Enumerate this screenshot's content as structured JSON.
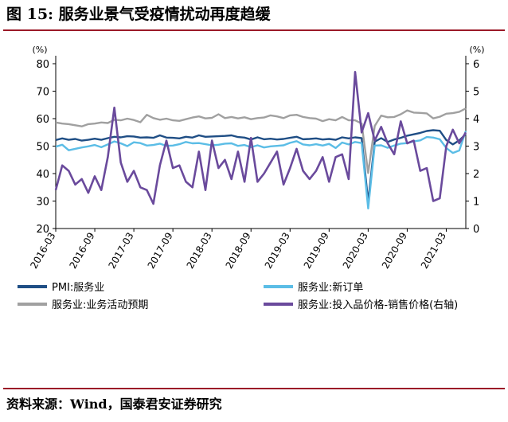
{
  "title": "图 15: 服务业景气受疫情扰动再度趋缓",
  "source": "资料来源：Wind，国泰君安证券研究",
  "colors": {
    "accent": "#9b1a28"
  },
  "chart_data": {
    "type": "line",
    "left_axis": {
      "unit": "(%)",
      "ylim": [
        20,
        80
      ],
      "ticks": [
        "20",
        "30",
        "40",
        "50",
        "60",
        "70",
        "80"
      ]
    },
    "right_axis": {
      "unit": "(%)",
      "ylim": [
        0,
        6
      ],
      "ticks": [
        "0",
        "1",
        "2",
        "3",
        "4",
        "5",
        "6"
      ]
    },
    "x_tick_labels": [
      "2016-03",
      "2016-09",
      "2017-03",
      "2017-09",
      "2018-03",
      "2018-09",
      "2019-03",
      "2019-09",
      "2020-03",
      "2020-09",
      "2021-03"
    ],
    "x_tick_positions": [
      0,
      6,
      12,
      18,
      24,
      30,
      36,
      42,
      48,
      54,
      60
    ],
    "series": [
      {
        "name": "PMI:服务业",
        "axis": "left",
        "color": "#1f4e85",
        "values": [
          52.2,
          52.8,
          52.3,
          52.6,
          52.0,
          52.3,
          52.7,
          52.3,
          52.9,
          53.4,
          53.2,
          53.6,
          53.5,
          53.1,
          53.2,
          53.0,
          53.9,
          53.1,
          53.0,
          52.8,
          53.4,
          53.1,
          53.9,
          53.4,
          53.5,
          53.6,
          53.7,
          53.9,
          53.3,
          53.1,
          52.4,
          53.2,
          52.5,
          52.7,
          52.4,
          52.6,
          53.0,
          53.4,
          52.5,
          52.6,
          52.8,
          52.4,
          52.6,
          52.3,
          53.2,
          52.8,
          53.2,
          52.9,
          29.6,
          51.6,
          52.9,
          51.5,
          52.4,
          53.0,
          53.8,
          54.3,
          54.8,
          55.5,
          55.8,
          55.6,
          52.2,
          50.6,
          52.1,
          54.4
        ]
      },
      {
        "name": "服务业:新订单",
        "axis": "left",
        "color": "#5bbde6",
        "values": [
          49.8,
          50.5,
          48.5,
          49.0,
          49.5,
          49.9,
          50.4,
          49.6,
          50.6,
          51.7,
          51.0,
          50.0,
          51.4,
          51.1,
          50.2,
          50.4,
          50.9,
          50.1,
          50.2,
          50.7,
          51.5,
          51.0,
          51.1,
          50.7,
          50.3,
          50.5,
          50.9,
          51.0,
          50.1,
          50.4,
          49.6,
          50.3,
          49.5,
          49.9,
          50.1,
          50.3,
          51.2,
          51.8,
          50.6,
          50.3,
          50.7,
          50.2,
          50.8,
          49.3,
          51.3,
          50.6,
          51.5,
          51.1,
          27.3,
          50.2,
          50.3,
          49.4,
          50.2,
          50.9,
          51.1,
          51.7,
          52.1,
          53.3,
          53.1,
          52.5,
          49.3,
          47.5,
          48.4,
          55.5
        ]
      },
      {
        "name": "服务业:业务活动预期",
        "axis": "left",
        "color": "#a0a0a0",
        "values": [
          58.6,
          58.2,
          58.0,
          57.6,
          57.2,
          58.0,
          58.2,
          58.6,
          58.4,
          59.6,
          59.4,
          60.0,
          59.5,
          58.7,
          61.4,
          60.2,
          59.6,
          60.0,
          59.4,
          59.2,
          59.8,
          60.4,
          60.8,
          60.1,
          60.3,
          61.6,
          60.2,
          60.6,
          60.1,
          60.5,
          59.8,
          60.2,
          60.4,
          61.2,
          60.8,
          60.2,
          61.2,
          61.4,
          60.6,
          60.2,
          60.0,
          59.1,
          59.8,
          59.4,
          60.6,
          59.4,
          59.4,
          58.2,
          40.2,
          57.3,
          61.1,
          60.5,
          60.6,
          61.6,
          63.0,
          62.2,
          62.1,
          61.9,
          60.1,
          60.7,
          61.8,
          62.0,
          62.5,
          63.7
        ]
      },
      {
        "name": "服务业:投入品价格-销售价格(右轴)",
        "axis": "right",
        "color": "#6a4a9c",
        "values": [
          1.4,
          2.3,
          2.1,
          1.6,
          1.8,
          1.3,
          1.9,
          1.4,
          2.6,
          4.4,
          2.4,
          1.7,
          2.1,
          1.5,
          1.4,
          0.9,
          2.3,
          3.2,
          2.2,
          2.3,
          1.7,
          1.5,
          2.8,
          1.4,
          3.2,
          2.2,
          2.5,
          1.8,
          2.8,
          1.7,
          3.3,
          1.7,
          2.0,
          2.4,
          2.8,
          1.6,
          2.2,
          2.9,
          2.1,
          1.8,
          2.1,
          2.6,
          1.7,
          2.6,
          2.7,
          1.8,
          5.7,
          3.5,
          4.2,
          3.2,
          3.7,
          3.1,
          2.7,
          3.9,
          3.1,
          3.2,
          2.1,
          2.2,
          1.0,
          1.1,
          3.0,
          3.6,
          3.1,
          3.5
        ]
      }
    ],
    "legend": [
      "PMI:服务业",
      "服务业:新订单",
      "服务业:业务活动预期",
      "服务业:投入品价格-销售价格(右轴)"
    ]
  }
}
